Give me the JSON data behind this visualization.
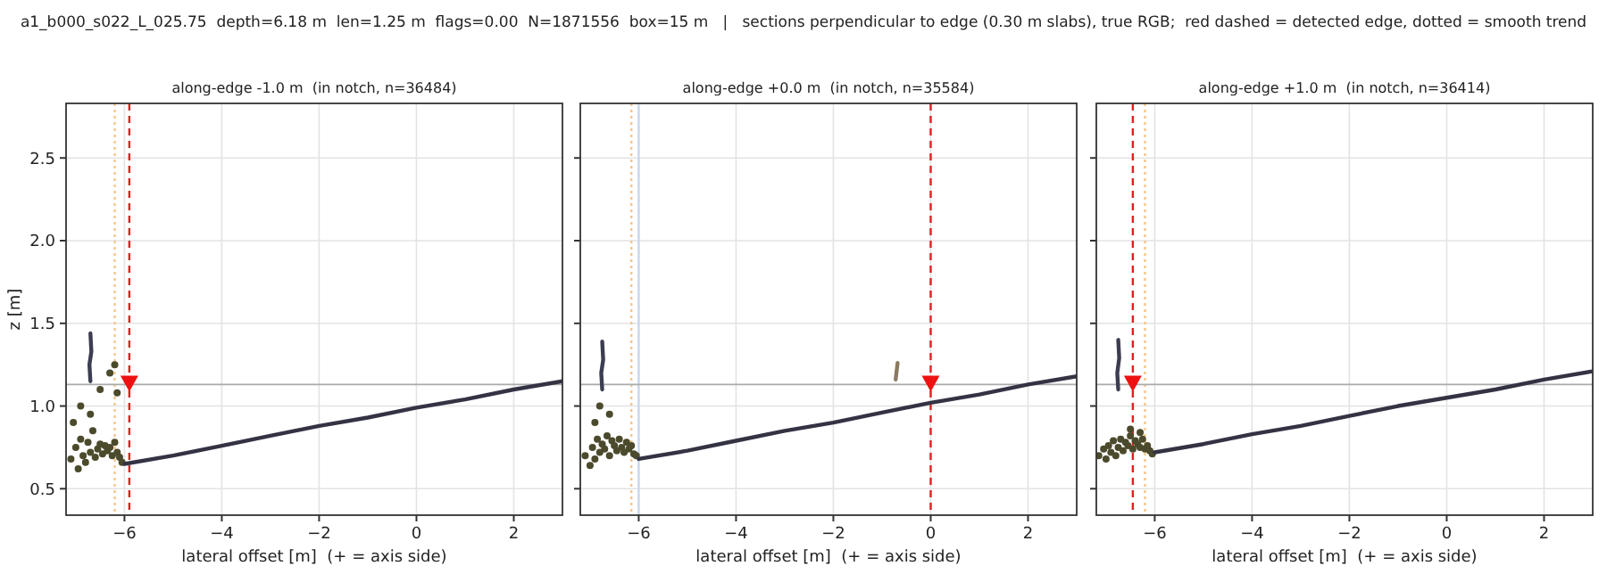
{
  "chart_data": [
    {
      "type": "scatter",
      "title": "along-edge -1.0 m  (in notch, n=36484)",
      "xlabel": "lateral offset [m]  (+ = axis side)",
      "ylabel": "z [m]",
      "annotations": [
        "a1_b000_s022_L_025.75  depth=6.18 m  len=1.25 m  flags=0.00  N=1871556  box=15 m   |   sections perpendicular to edge (0.30 m slabs), true RGB;  red dashed = detected edge, dotted = smooth trend"
      ],
      "xlim": [
        -7.2,
        3
      ],
      "ylim": [
        0.34,
        2.83
      ],
      "xticks": [
        -6,
        -4,
        -2,
        0,
        2
      ],
      "yticks": [
        {
          "value": 0.5,
          "label": "0.5"
        },
        {
          "value": 1,
          "label": "1.0"
        },
        {
          "value": 1.5,
          "label": "1.5"
        },
        {
          "value": 2,
          "label": "2.0"
        },
        {
          "value": 2.5,
          "label": "2.5"
        }
      ],
      "grid": true,
      "ref_lines": [
        {
          "axis": "x",
          "value": -6.2,
          "color": "#f5c68a",
          "line_style": "dotted"
        },
        {
          "axis": "x",
          "value": -5.9,
          "color": "#e02020",
          "line_style": "dashed"
        },
        {
          "axis": "y",
          "value": 1.13,
          "color": "#aaaaaa",
          "line_style": "solid"
        }
      ],
      "series": [
        {
          "type": "scatter",
          "marker": "circle",
          "color": "#4b4a2c",
          "x": [
            -7.1,
            -7.0,
            -6.95,
            -6.9,
            -6.85,
            -6.8,
            -6.75,
            -6.7,
            -6.65,
            -6.6,
            -6.55,
            -6.5,
            -6.45,
            -6.4,
            -6.35,
            -6.3,
            -6.25,
            -6.2,
            -6.15,
            -6.1,
            -6.05,
            -7.05,
            -6.9,
            -6.7,
            -6.5,
            -6.3,
            -6.2,
            -6.15
          ],
          "values": [
            0.68,
            0.75,
            0.62,
            0.8,
            0.7,
            0.66,
            0.78,
            0.72,
            0.85,
            0.69,
            0.74,
            0.77,
            0.71,
            0.76,
            0.73,
            0.75,
            0.7,
            0.78,
            0.72,
            0.69,
            0.66,
            0.9,
            1.0,
            0.95,
            1.1,
            1.2,
            1.25,
            1.08
          ]
        },
        {
          "type": "line",
          "color": "#3d3d52",
          "x": [
            -6.7,
            -6.72,
            -6.68,
            -6.7
          ],
          "values": [
            1.15,
            1.25,
            1.33,
            1.44
          ]
        },
        {
          "type": "line",
          "color": "#333344",
          "x": [
            -6.0,
            -5,
            -4,
            -3,
            -2,
            -1,
            0,
            1,
            2,
            3
          ],
          "values": [
            0.65,
            0.7,
            0.76,
            0.82,
            0.88,
            0.93,
            0.99,
            1.04,
            1.1,
            1.15
          ]
        },
        {
          "type": "scatter",
          "marker": "triangle",
          "color": "#ee1111",
          "x": [
            -5.9
          ],
          "values": [
            1.13
          ]
        }
      ]
    },
    {
      "type": "scatter",
      "title": "along-edge +0.0 m  (in notch, n=35584)",
      "xlabel": "lateral offset [m]  (+ = axis side)",
      "tick_labels": "x",
      "xlim": [
        -7.2,
        3
      ],
      "ylim": [
        0.34,
        2.83
      ],
      "xticks": [
        -6,
        -4,
        -2,
        0,
        2
      ],
      "yticks": [
        0.5,
        1,
        1.5,
        2,
        2.5
      ],
      "grid": true,
      "ref_lines": [
        {
          "axis": "x",
          "value": -6.15,
          "color": "#f5c68a",
          "line_style": "dotted"
        },
        {
          "axis": "x",
          "value": -6.0,
          "color": "#c9d8ef",
          "line_style": "solid"
        },
        {
          "axis": "x",
          "value": 0,
          "color": "#e02020",
          "line_style": "dashed"
        },
        {
          "axis": "y",
          "value": 1.13,
          "color": "#aaaaaa",
          "line_style": "solid"
        }
      ],
      "series": [
        {
          "type": "scatter",
          "marker": "circle",
          "color": "#4b4a2c",
          "x": [
            -7.1,
            -7.0,
            -6.95,
            -6.9,
            -6.85,
            -6.8,
            -6.75,
            -6.7,
            -6.65,
            -6.6,
            -6.55,
            -6.5,
            -6.45,
            -6.4,
            -6.35,
            -6.3,
            -6.25,
            -6.2,
            -6.15,
            -6.1,
            -6.05,
            -6.9,
            -6.8,
            -6.6
          ],
          "values": [
            0.7,
            0.64,
            0.75,
            0.68,
            0.8,
            0.72,
            0.77,
            0.74,
            0.82,
            0.7,
            0.79,
            0.76,
            0.73,
            0.8,
            0.75,
            0.72,
            0.78,
            0.74,
            0.76,
            0.71,
            0.7,
            0.9,
            1.0,
            0.95
          ]
        },
        {
          "type": "line",
          "color": "#3d3d52",
          "x": [
            -6.75,
            -6.77,
            -6.73,
            -6.75
          ],
          "values": [
            1.1,
            1.2,
            1.28,
            1.39
          ]
        },
        {
          "type": "line",
          "color": "#8a7a60",
          "x": [
            -0.72,
            -0.68
          ],
          "values": [
            1.16,
            1.26
          ]
        },
        {
          "type": "line",
          "color": "#333344",
          "x": [
            -6.0,
            -5,
            -4,
            -3,
            -2,
            -1,
            0,
            1,
            2,
            3
          ],
          "values": [
            0.68,
            0.73,
            0.79,
            0.85,
            0.9,
            0.96,
            1.02,
            1.07,
            1.13,
            1.18
          ]
        },
        {
          "type": "scatter",
          "marker": "triangle",
          "color": "#ee1111",
          "x": [
            0
          ],
          "values": [
            1.13
          ]
        }
      ]
    },
    {
      "type": "scatter",
      "title": "along-edge +1.0 m  (in notch, n=36414)",
      "xlabel": "lateral offset [m]  (+ = axis side)",
      "tick_labels": "x",
      "xlim": [
        -7.2,
        3
      ],
      "ylim": [
        0.34,
        2.83
      ],
      "xticks": [
        -6,
        -4,
        -2,
        0,
        2
      ],
      "yticks": [
        0.5,
        1,
        1.5,
        2,
        2.5
      ],
      "grid": true,
      "ref_lines": [
        {
          "axis": "x",
          "value": -6.2,
          "color": "#f5c68a",
          "line_style": "dotted"
        },
        {
          "axis": "x",
          "value": -6.45,
          "color": "#e02020",
          "line_style": "dashed"
        },
        {
          "axis": "y",
          "value": 1.13,
          "color": "#aaaaaa",
          "line_style": "solid"
        }
      ],
      "series": [
        {
          "type": "scatter",
          "marker": "circle",
          "color": "#4b4a2c",
          "x": [
            -7.15,
            -7.05,
            -7.0,
            -6.95,
            -6.9,
            -6.85,
            -6.8,
            -6.75,
            -6.7,
            -6.65,
            -6.6,
            -6.55,
            -6.5,
            -6.45,
            -6.4,
            -6.35,
            -6.3,
            -6.25,
            -6.2,
            -6.15,
            -6.1,
            -6.05,
            -6.5,
            -6.3
          ],
          "values": [
            0.7,
            0.74,
            0.68,
            0.76,
            0.72,
            0.79,
            0.7,
            0.75,
            0.8,
            0.73,
            0.78,
            0.76,
            0.82,
            0.74,
            0.79,
            0.77,
            0.75,
            0.8,
            0.74,
            0.76,
            0.73,
            0.71,
            0.86,
            0.84
          ]
        },
        {
          "type": "line",
          "color": "#3d3d52",
          "x": [
            -6.75,
            -6.77,
            -6.73,
            -6.75
          ],
          "values": [
            1.1,
            1.2,
            1.29,
            1.4
          ]
        },
        {
          "type": "line",
          "color": "#333344",
          "x": [
            -6.0,
            -5,
            -4,
            -3,
            -2,
            -1,
            0,
            1,
            2,
            3
          ],
          "values": [
            0.72,
            0.77,
            0.83,
            0.88,
            0.94,
            1.0,
            1.05,
            1.1,
            1.16,
            1.21
          ]
        },
        {
          "type": "scatter",
          "marker": "triangle",
          "color": "#ee1111",
          "x": [
            -6.45
          ],
          "values": [
            1.13
          ]
        }
      ]
    }
  ]
}
